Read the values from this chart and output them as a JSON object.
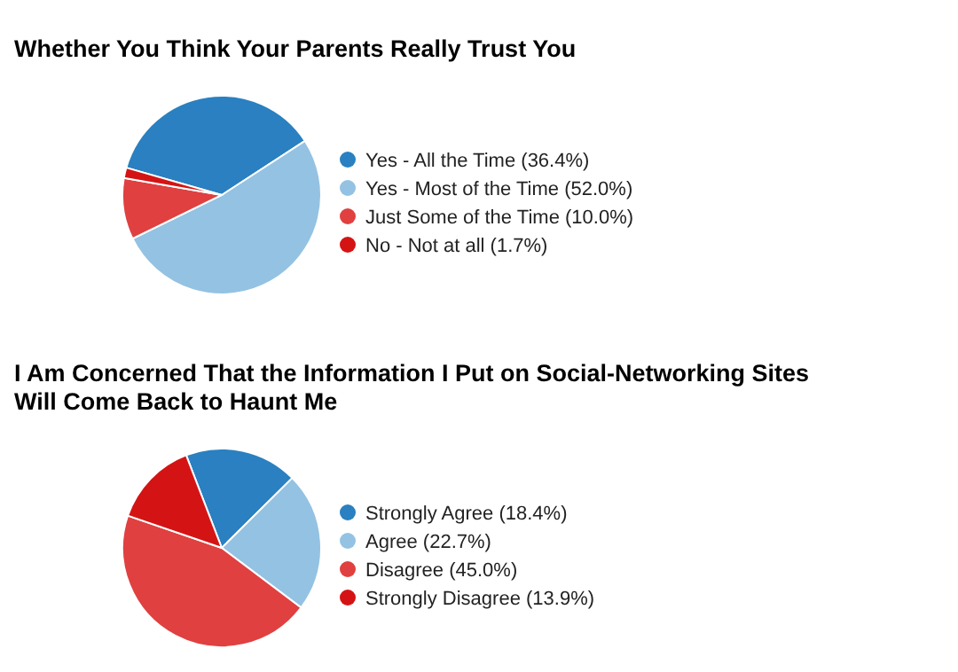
{
  "chart_data": [
    {
      "type": "pie",
      "title": "Whether You Think Your Parents Really Trust You",
      "categories": [
        "Yes - All the Time",
        "Yes - Most of the Time",
        "Just Some of the Time",
        "No - Not at all"
      ],
      "values": [
        36.4,
        52.0,
        10.0,
        1.7
      ],
      "value_labels": [
        "(36.4%)",
        "(52.0%)",
        "(10.0%)",
        "(1.7%)"
      ],
      "colors": [
        "#2a80c0",
        "#94c2e2",
        "#e04040",
        "#d41414"
      ],
      "legend": "right"
    },
    {
      "type": "pie",
      "title": "I Am Concerned That the Information I Put on Social-Networking Sites Will Come Back to Haunt Me",
      "categories": [
        "Strongly Agree",
        "Agree",
        "Disagree",
        "Strongly Disagree"
      ],
      "values": [
        18.4,
        22.7,
        45.0,
        13.9
      ],
      "value_labels": [
        "(18.4%)",
        "(22.7%)",
        "(45.0%)",
        "(13.9%)"
      ],
      "colors": [
        "#2a80c0",
        "#94c2e2",
        "#e04040",
        "#d41414"
      ],
      "legend": "right"
    }
  ]
}
